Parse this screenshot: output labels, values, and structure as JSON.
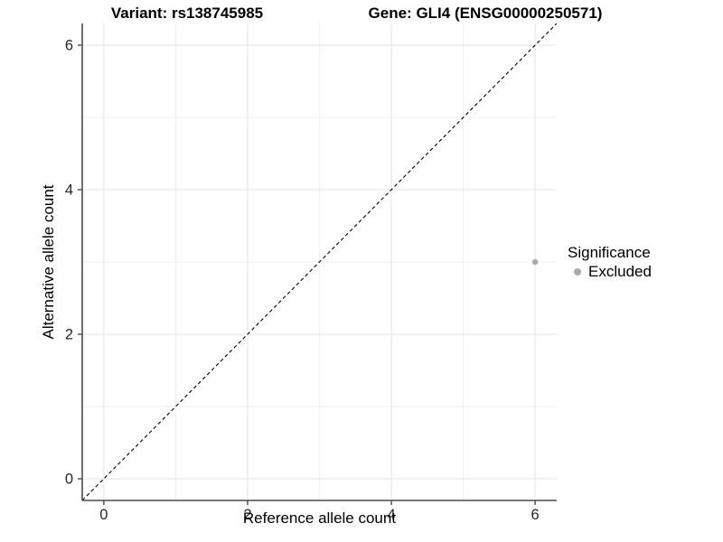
{
  "title": {
    "variant": "Variant: rs138745985",
    "gene": "Gene: GLI4 (ENSG00000250571)"
  },
  "axes": {
    "x": {
      "label": "Reference allele count",
      "ticks": [
        "0",
        "2",
        "4",
        "6"
      ]
    },
    "y": {
      "label": "Alternative allele count",
      "ticks": [
        "0",
        "2",
        "4",
        "6"
      ]
    }
  },
  "legend": {
    "title": "Significance",
    "items": [
      {
        "label": "Excluded",
        "color": "#aaaaaa",
        "marker": "circle"
      }
    ]
  },
  "chart_data": {
    "type": "scatter",
    "title": "Variant: rs138745985    Gene: GLI4 (ENSG00000250571)",
    "xlabel": "Reference allele count",
    "ylabel": "Alternative allele count",
    "xlim": [
      -0.3,
      6.3
    ],
    "ylim": [
      -0.3,
      6.3
    ],
    "x_ticks": [
      0,
      2,
      4,
      6
    ],
    "y_ticks": [
      0,
      2,
      4,
      6
    ],
    "x_minor_ticks": [
      1,
      3,
      5
    ],
    "y_minor_ticks": [
      1,
      3,
      5
    ],
    "grid": true,
    "legend_position": "right",
    "series": [
      {
        "name": "Excluded",
        "color": "#aaaaaa",
        "points": [
          {
            "x": 6,
            "y": 3
          }
        ]
      }
    ],
    "reference_line": {
      "type": "identity",
      "style": "dashed",
      "color": "#000000",
      "comment": "y = x diagonal"
    }
  },
  "colors": {
    "background": "#ffffff",
    "axis_line": "#4a4a4a",
    "tick_text": "#262626",
    "grid_major": "#e5e5e5",
    "grid_minor": "#efefef",
    "point": "#aaaaaa"
  }
}
